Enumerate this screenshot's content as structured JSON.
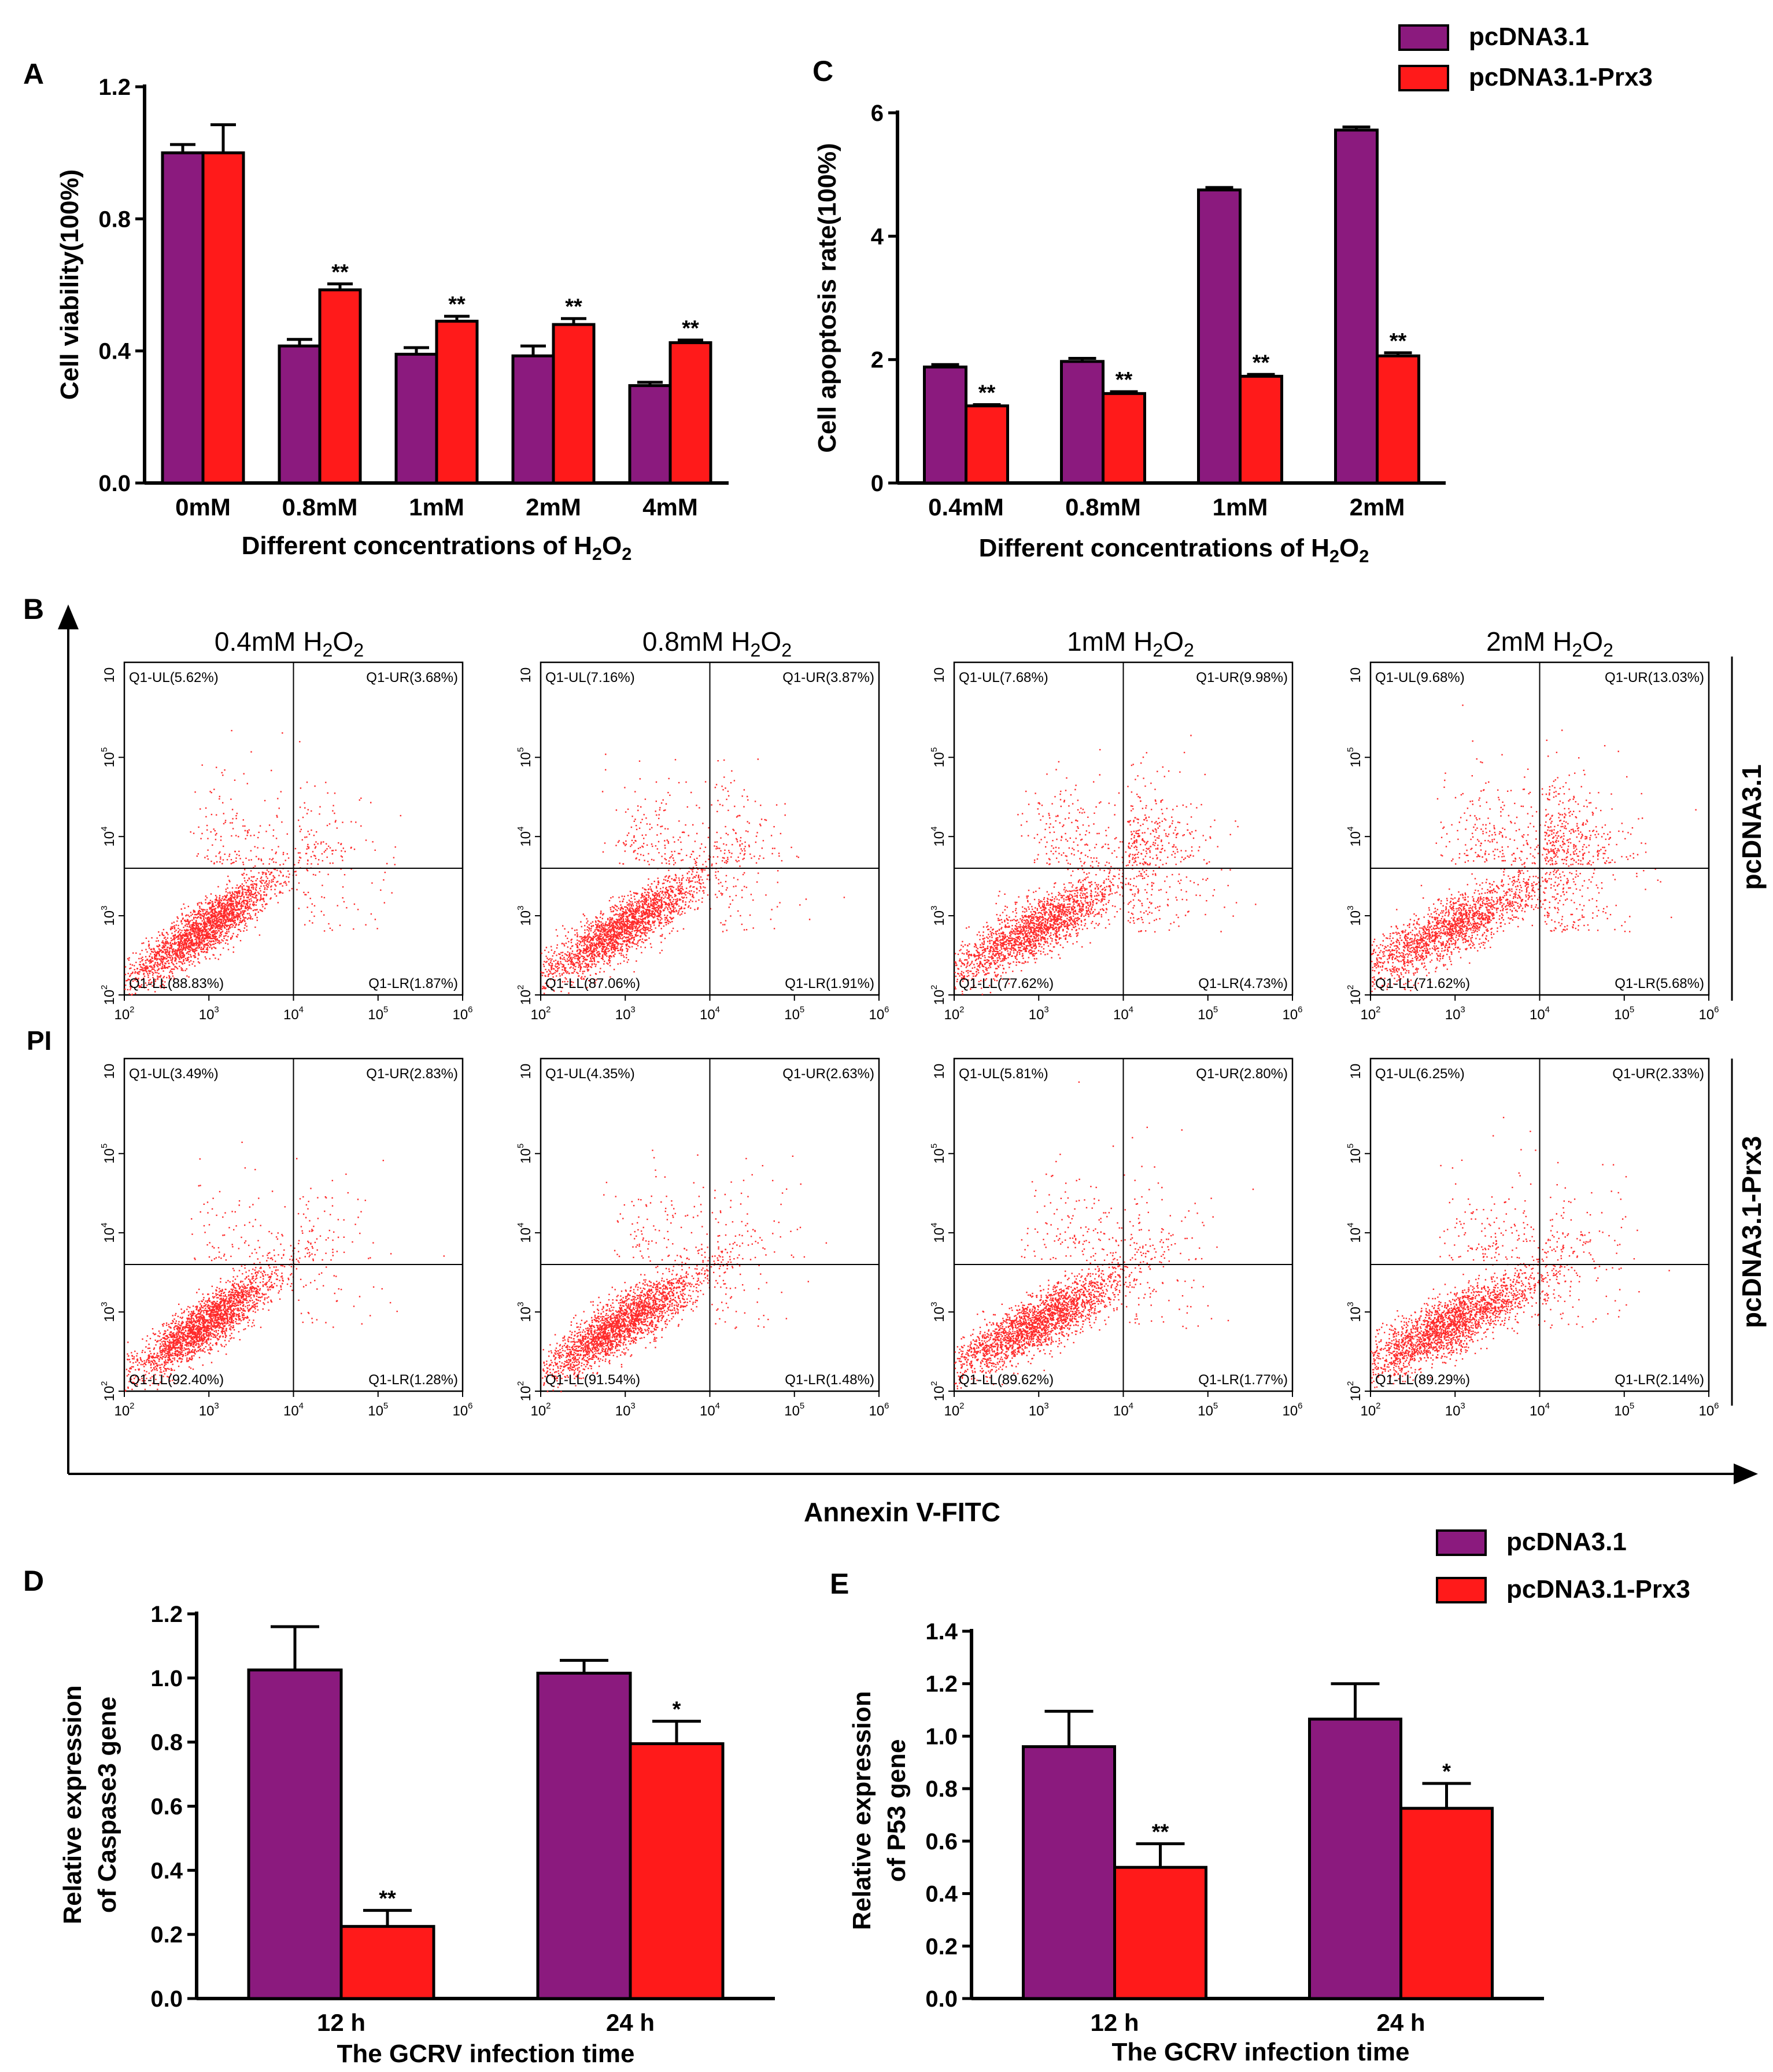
{
  "colors": {
    "pcdna": "#8B1A7E",
    "prx3": "#FF1A1A",
    "dot": "#FF2A2A"
  },
  "legend_top": {
    "items": [
      "pcDNA3.1",
      "pcDNA3.1-Prx3"
    ]
  },
  "legend_bottom": {
    "items": [
      "pcDNA3.1",
      "pcDNA3.1-Prx3"
    ]
  },
  "chart_data": [
    {
      "panel": "A",
      "type": "bar",
      "categories": [
        "0mM",
        "0.8mM",
        "1mM",
        "2mM",
        "4mM"
      ],
      "series": [
        {
          "name": "pcDNA3.1",
          "values": [
            1.0,
            0.415,
            0.39,
            0.385,
            0.295
          ],
          "errors": [
            0.025,
            0.02,
            0.02,
            0.03,
            0.01
          ]
        },
        {
          "name": "pcDNA3.1-Prx3",
          "values": [
            1.0,
            0.585,
            0.49,
            0.48,
            0.425
          ],
          "errors": [
            0.085,
            0.018,
            0.015,
            0.018,
            0.008
          ]
        }
      ],
      "significance": [
        [
          "",
          ""
        ],
        [
          "",
          "**"
        ],
        [
          "",
          "**"
        ],
        [
          "",
          "**"
        ],
        [
          "",
          "**"
        ]
      ],
      "ylim": [
        0,
        1.2
      ],
      "yticks": [
        "0.0",
        "0.4",
        "0.8",
        "1.2"
      ],
      "ylabel": "Cell viability(100%)",
      "xlabel_main": "Different concentrations of H",
      "xlabel_sub": "2",
      "xlabel_mid": "O",
      "xlabel_sub2": "2"
    },
    {
      "panel": "C",
      "type": "bar",
      "categories": [
        "0.4mM",
        "0.8mM",
        "1mM",
        "2mM"
      ],
      "series": [
        {
          "name": "pcDNA3.1",
          "values": [
            1.88,
            1.97,
            4.75,
            5.72
          ],
          "errors": [
            0.04,
            0.05,
            0.04,
            0.05
          ]
        },
        {
          "name": "pcDNA3.1-Prx3",
          "values": [
            1.25,
            1.45,
            1.73,
            2.06
          ],
          "errors": [
            0.02,
            0.03,
            0.03,
            0.05
          ]
        }
      ],
      "significance": [
        [
          "",
          "**"
        ],
        [
          "",
          "**"
        ],
        [
          "",
          "**"
        ],
        [
          "",
          "**"
        ]
      ],
      "ylim": [
        0,
        6
      ],
      "yticks": [
        "0",
        "2",
        "4",
        "6"
      ],
      "ylabel": "Cell apoptosis rate(100%)",
      "xlabel_main": "Different concentrations of H",
      "xlabel_sub": "2",
      "xlabel_mid": "O",
      "xlabel_sub2": "2"
    },
    {
      "panel": "D",
      "type": "bar",
      "categories": [
        "12 h",
        "24 h"
      ],
      "series": [
        {
          "name": "pcDNA3.1",
          "values": [
            1.025,
            1.015
          ],
          "errors": [
            0.135,
            0.04
          ]
        },
        {
          "name": "pcDNA3.1-Prx3",
          "values": [
            0.225,
            0.795
          ],
          "errors": [
            0.05,
            0.07
          ]
        }
      ],
      "significance": [
        [
          "",
          "**"
        ],
        [
          "",
          "*"
        ]
      ],
      "ylim": [
        0,
        1.2
      ],
      "yticks": [
        "0.0",
        "0.2",
        "0.4",
        "0.6",
        "0.8",
        "1.0",
        "1.2"
      ],
      "ylabel_line1": "Relative expression",
      "ylabel_line2": "of Caspase3 gene",
      "xlabel": "The GCRV infection time"
    },
    {
      "panel": "E",
      "type": "bar",
      "categories": [
        "12 h",
        "24 h"
      ],
      "series": [
        {
          "name": "pcDNA3.1",
          "values": [
            0.96,
            1.065
          ],
          "errors": [
            0.135,
            0.135
          ]
        },
        {
          "name": "pcDNA3.1-Prx3",
          "values": [
            0.5,
            0.725
          ],
          "errors": [
            0.09,
            0.095
          ]
        }
      ],
      "significance": [
        [
          "",
          "**"
        ],
        [
          "",
          "*"
        ]
      ],
      "ylim": [
        0,
        1.4
      ],
      "yticks": [
        "0.0",
        "0.2",
        "0.4",
        "0.6",
        "0.8",
        "1.0",
        "1.2",
        "1.4"
      ],
      "ylabel_line1": "Relative expression",
      "ylabel_line2": "of P53 gene",
      "xlabel": "The GCRV infection time"
    },
    {
      "panel": "B",
      "type": "scatter",
      "title_prefix": "B",
      "column_headers": [
        {
          "value": "0.4mM H",
          "sub": "2",
          "mid": "O",
          "sub2": "2"
        },
        {
          "value": "0.8mM H",
          "sub": "2",
          "mid": "O",
          "sub2": "2"
        },
        {
          "value": "1mM H",
          "sub": "2",
          "mid": "O",
          "sub2": "2"
        },
        {
          "value": "2mM H",
          "sub": "2",
          "mid": "O",
          "sub2": "2"
        }
      ],
      "row_labels": [
        "pcDNA3.1",
        "pcDNA3.1-Prx3"
      ],
      "ylabel": "PI",
      "xlabel": "Annexin V-FITC",
      "x_ticks": [
        "10",
        "10",
        "10",
        "10",
        "10"
      ],
      "x_tick_exps": [
        "2",
        "3",
        "4",
        "5",
        "6"
      ],
      "y_ticks": [
        "10",
        "10",
        "10",
        "10"
      ],
      "y_tick_exps": [
        "2",
        "3",
        "4",
        "5"
      ],
      "y_top_tick": "10",
      "quadrant_gates": {
        "x_log": 4.0,
        "y_log": 3.6
      },
      "plots": [
        {
          "row": 0,
          "col": 0,
          "UL": "Q1-UL(5.62%)",
          "UR": "Q1-UR(3.68%)",
          "LL": "Q1-LL(88.83%)",
          "LR": "Q1-LR(1.87%)"
        },
        {
          "row": 0,
          "col": 1,
          "UL": "Q1-UL(7.16%)",
          "UR": "Q1-UR(3.87%)",
          "LL": "Q1-LL(87.06%)",
          "LR": "Q1-LR(1.91%)"
        },
        {
          "row": 0,
          "col": 2,
          "UL": "Q1-UL(7.68%)",
          "UR": "Q1-UR(9.98%)",
          "LL": "Q1-LL(77.62%)",
          "LR": "Q1-LR(4.73%)"
        },
        {
          "row": 0,
          "col": 3,
          "UL": "Q1-UL(9.68%)",
          "UR": "Q1-UR(13.03%)",
          "LL": "Q1-LL(71.62%)",
          "LR": "Q1-LR(5.68%)"
        },
        {
          "row": 1,
          "col": 0,
          "UL": "Q1-UL(3.49%)",
          "UR": "Q1-UR(2.83%)",
          "LL": "Q1-LL(92.40%)",
          "LR": "Q1-LR(1.28%)"
        },
        {
          "row": 1,
          "col": 1,
          "UL": "Q1-UL(4.35%)",
          "UR": "Q1-UR(2.63%)",
          "LL": "Q1-LL(91.54%)",
          "LR": "Q1-LR(1.48%)"
        },
        {
          "row": 1,
          "col": 2,
          "UL": "Q1-UL(5.81%)",
          "UR": "Q1-UR(2.80%)",
          "LL": "Q1-LL(89.62%)",
          "LR": "Q1-LR(1.77%)"
        },
        {
          "row": 1,
          "col": 3,
          "UL": "Q1-UL(6.25%)",
          "UR": "Q1-UR(2.33%)",
          "LL": "Q1-LL(89.29%)",
          "LR": "Q1-LR(2.14%)"
        }
      ]
    }
  ]
}
